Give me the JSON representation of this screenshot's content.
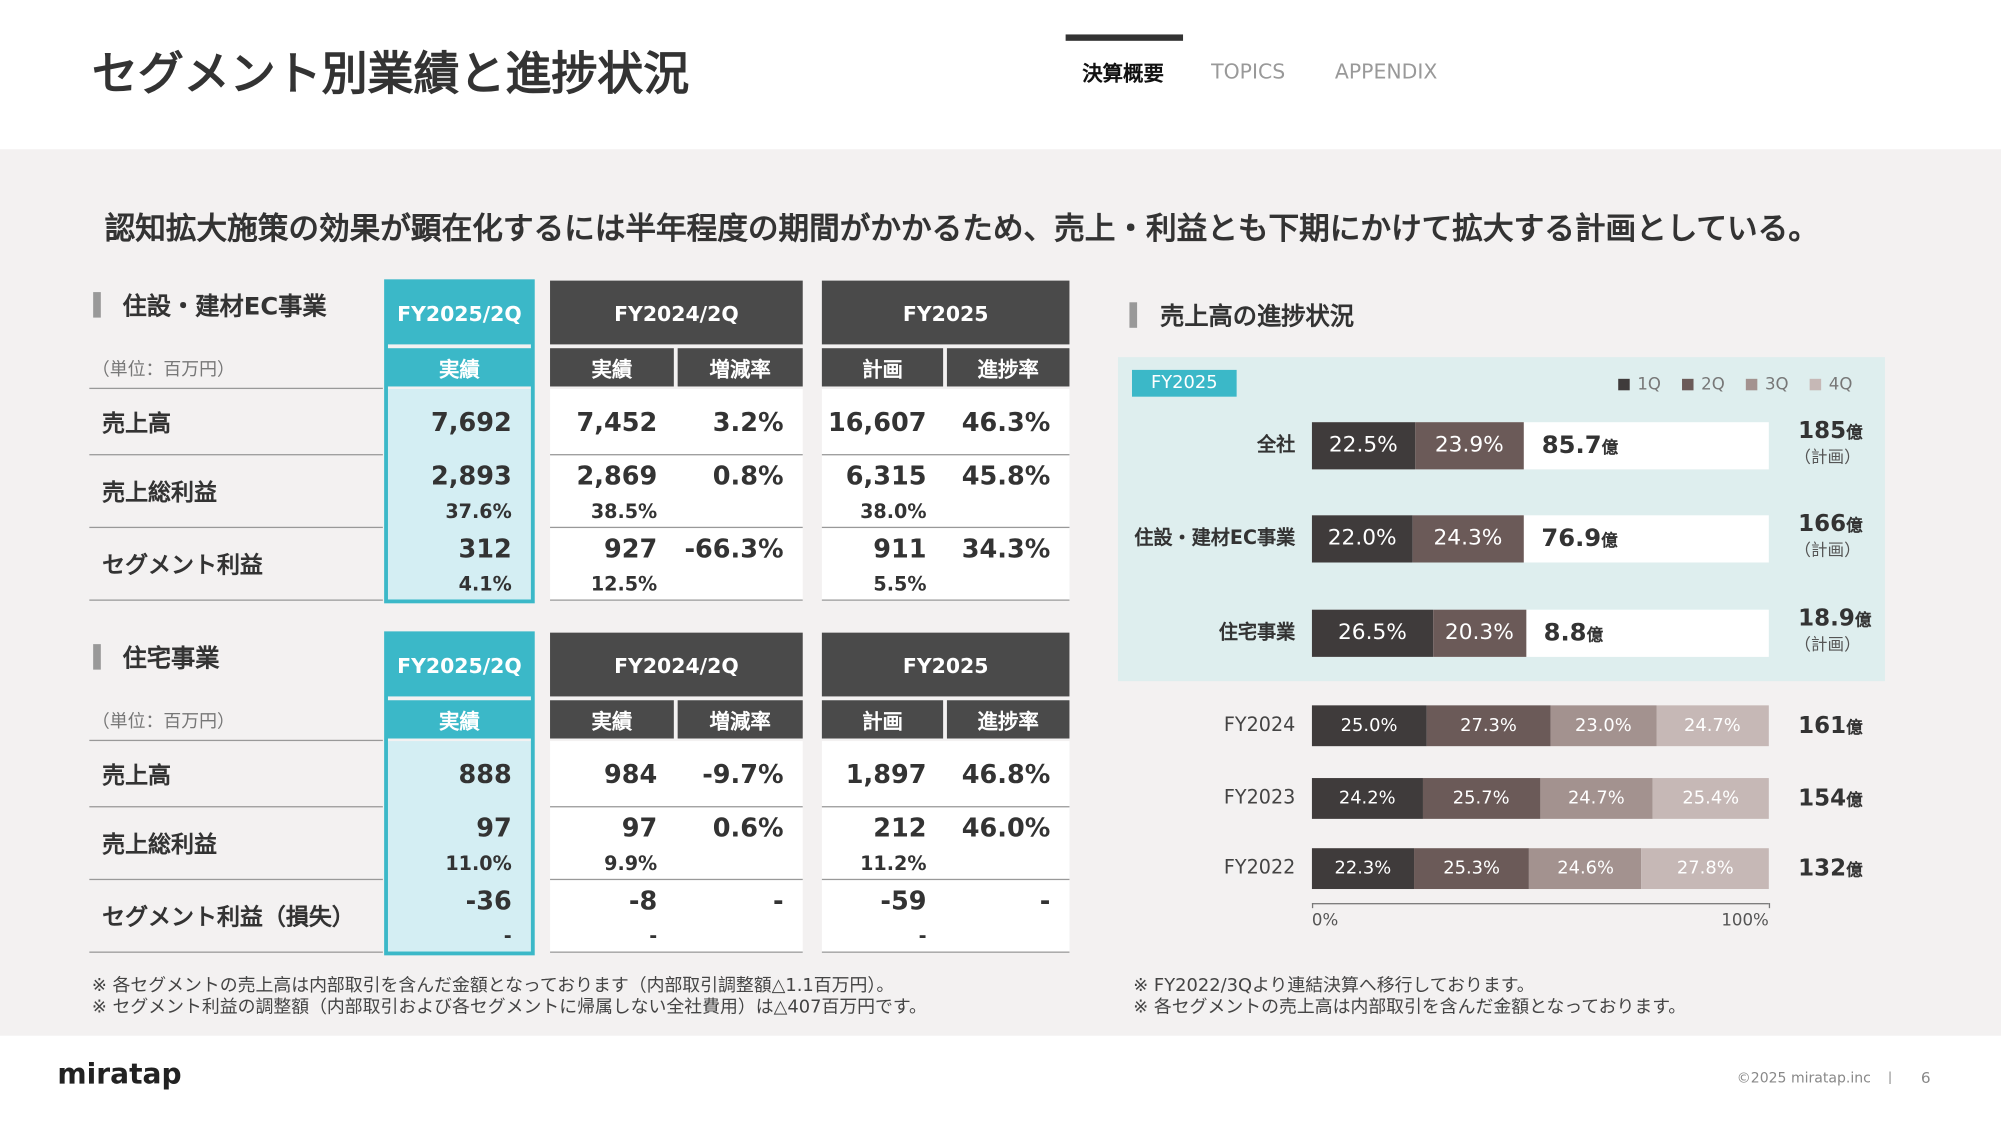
{
  "header": {
    "title": "セグメント別業績と進捗状況",
    "tabs": [
      "決算概要",
      "TOPICS",
      "APPENDIX"
    ],
    "active_tab": 0
  },
  "message": "認知拡大施策の効果が顕在化するには半年程度の期間がかかるため、売上・利益とも下期にかけて拡大する計画としている。",
  "segments": [
    {
      "title": "住設・建材EC事業",
      "unit": "（単位：百万円）",
      "groups": [
        {
          "label": "FY2025/2Q",
          "columns": [
            "実績"
          ]
        },
        {
          "label": "FY2024/2Q",
          "columns": [
            "実績",
            "増減率"
          ]
        },
        {
          "label": "FY2025",
          "columns": [
            "計画",
            "進捗率"
          ]
        }
      ],
      "rows": [
        {
          "label": "売上高",
          "values": [
            "7,692",
            "7,452",
            "3.2%",
            "16,607",
            "46.3%"
          ]
        },
        {
          "label": "売上総利益",
          "values": [
            "2,893",
            "2,869",
            "0.8%",
            "6,315",
            "45.8%"
          ],
          "margins": [
            "37.6%",
            "38.5%",
            "38.0%"
          ]
        },
        {
          "label": "セグメント利益",
          "values": [
            "312",
            "927",
            "-66.3%",
            "911",
            "34.3%"
          ],
          "margins": [
            "4.1%",
            "12.5%",
            "5.5%"
          ]
        }
      ]
    },
    {
      "title": "住宅事業",
      "unit": "（単位：百万円）",
      "groups": [
        {
          "label": "FY2025/2Q",
          "columns": [
            "実績"
          ]
        },
        {
          "label": "FY2024/2Q",
          "columns": [
            "実績",
            "増減率"
          ]
        },
        {
          "label": "FY2025",
          "columns": [
            "計画",
            "進捗率"
          ]
        }
      ],
      "rows": [
        {
          "label": "売上高",
          "values": [
            "888",
            "984",
            "-9.7%",
            "1,897",
            "46.8%"
          ]
        },
        {
          "label": "売上総利益",
          "values": [
            "97",
            "97",
            "0.6%",
            "212",
            "46.0%"
          ],
          "margins": [
            "11.0%",
            "9.9%",
            "11.2%"
          ]
        },
        {
          "label": "セグメント利益（損失）",
          "values": [
            "-36",
            "-8",
            "-",
            "-59",
            "-"
          ],
          "margins": [
            "-",
            "-",
            "-"
          ]
        }
      ]
    }
  ],
  "notes_left": [
    "※ 各セグメントの売上高は内部取引を含んだ金額となっております（内部取引調整額△1.1百万円）。",
    "※ セグメント利益の調整額（内部取引および各セグメントに帰属しない全社費用）は△407百万円です。"
  ],
  "notes_right": [
    "※ FY2022/3Qより連結決算へ移行しております。",
    "※ 各セグメントの売上高は内部取引を含んだ金額となっております。"
  ],
  "chart_data": {
    "type": "bar",
    "title": "売上高の進捗状況",
    "badge": "FY2025",
    "categories": [
      "全社",
      "住設・建材EC事業",
      "住宅事業",
      "FY2024",
      "FY2023",
      "FY2022"
    ],
    "series": [
      {
        "name": "1Q",
        "color": "#3f3b3b",
        "values": [
          22.5,
          22.0,
          26.5,
          25.0,
          24.2,
          22.3
        ],
        "value_labels": [
          "22.5%",
          "22.0%",
          "26.5%",
          "25.0%",
          "24.2%",
          "22.3%"
        ]
      },
      {
        "name": "2Q",
        "color": "#6b5a58",
        "values": [
          23.9,
          24.3,
          20.3,
          27.3,
          25.7,
          25.3
        ],
        "value_labels": [
          "23.9%",
          "24.3%",
          "20.3%",
          "27.3%",
          "25.7%",
          "25.3%"
        ]
      },
      {
        "name": "3Q",
        "color": "#a3928f",
        "values": [
          null,
          null,
          null,
          23.0,
          24.7,
          24.6
        ],
        "value_labels": [
          null,
          null,
          null,
          "23.0%",
          "24.7%",
          "24.6%"
        ]
      },
      {
        "name": "4Q",
        "color": "#c6b8b6",
        "values": [
          null,
          null,
          null,
          24.7,
          25.4,
          27.8
        ],
        "value_labels": [
          null,
          null,
          null,
          "24.7%",
          "25.4%",
          "27.8%"
        ]
      }
    ],
    "xlim": [
      0,
      100
    ],
    "xticks": [
      {
        "value": 0,
        "label": "0%"
      },
      {
        "value": 100,
        "label": "100%"
      }
    ],
    "progress_labels": [
      "85.7",
      "76.9",
      "8.8"
    ],
    "totals": [
      "185",
      "166",
      "18.9",
      "161",
      "154",
      "132"
    ],
    "unit": "億",
    "plan_note": "（計画）"
  },
  "footer": {
    "logo": "miratap",
    "copyright": "©2025 miratap.inc",
    "separator": "|",
    "page": "6"
  }
}
